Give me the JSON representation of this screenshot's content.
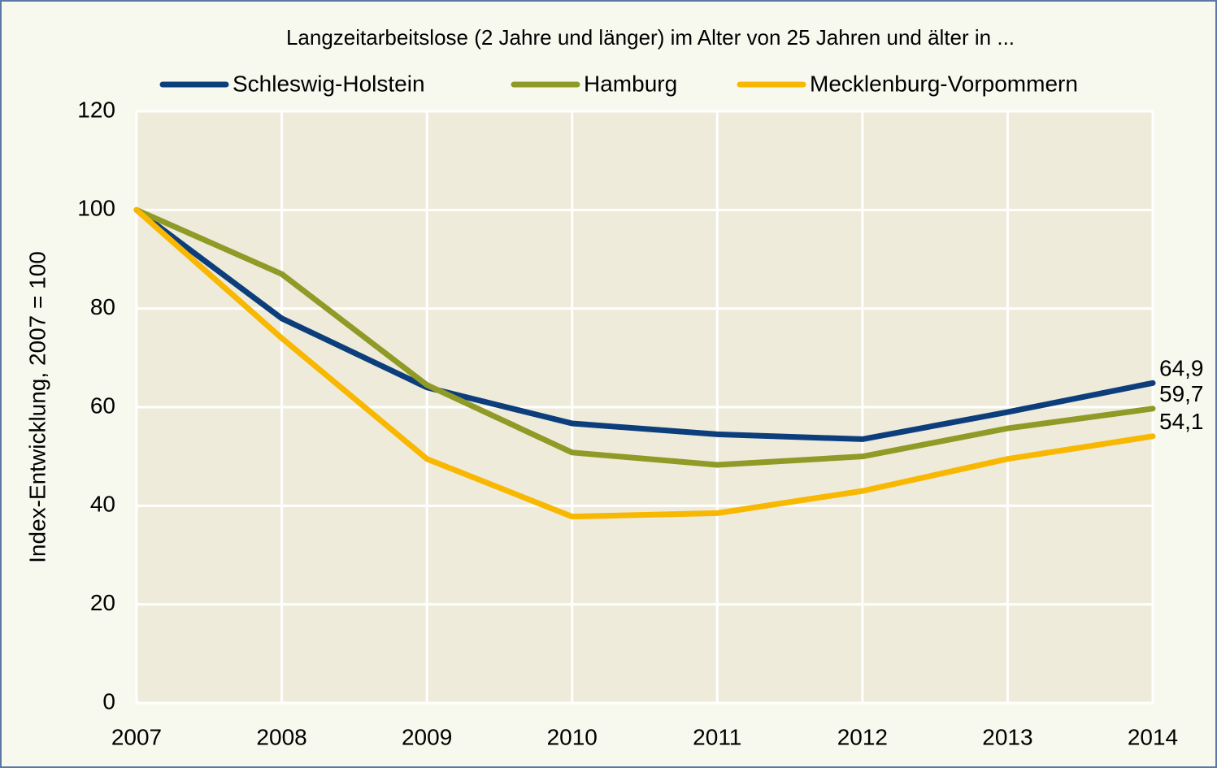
{
  "chart_data": {
    "type": "line",
    "title": "Langzeitarbeitslose (2 Jahre und länger) im Alter von 25 Jahren und älter in ...",
    "y_label": "Index-Entwicklung, 2007 = 100",
    "x": [
      2007,
      2008,
      2009,
      2010,
      2011,
      2012,
      2013,
      2014
    ],
    "xlim": [
      2007,
      2014
    ],
    "xticks": [
      2007,
      2008,
      2009,
      2010,
      2011,
      2012,
      2013,
      2014
    ],
    "ylim": [
      0,
      120
    ],
    "yticks": [
      0,
      20,
      40,
      60,
      80,
      100,
      120
    ],
    "grid": true,
    "legend": "top",
    "series": [
      {
        "name": "Schleswig-Holstein",
        "color": "#0d3e7c",
        "values": [
          100,
          78,
          64,
          56.7,
          54.5,
          53.5,
          59,
          64.9
        ],
        "value_labels": [
          null,
          null,
          null,
          null,
          null,
          null,
          null,
          "64,9"
        ]
      },
      {
        "name": "Hamburg",
        "color": "#8f9b26",
        "values": [
          100,
          87,
          64.5,
          50.8,
          48.3,
          50,
          55.7,
          59.7
        ],
        "value_labels": [
          null,
          null,
          null,
          null,
          null,
          null,
          null,
          "59,7"
        ]
      },
      {
        "name": "Mecklenburg-Vorpommern",
        "color": "#f8b700",
        "values": [
          100,
          74,
          49.5,
          37.8,
          38.5,
          43,
          49.5,
          54.1
        ],
        "value_labels": [
          null,
          null,
          null,
          null,
          null,
          null,
          null,
          "54,1"
        ]
      }
    ]
  }
}
